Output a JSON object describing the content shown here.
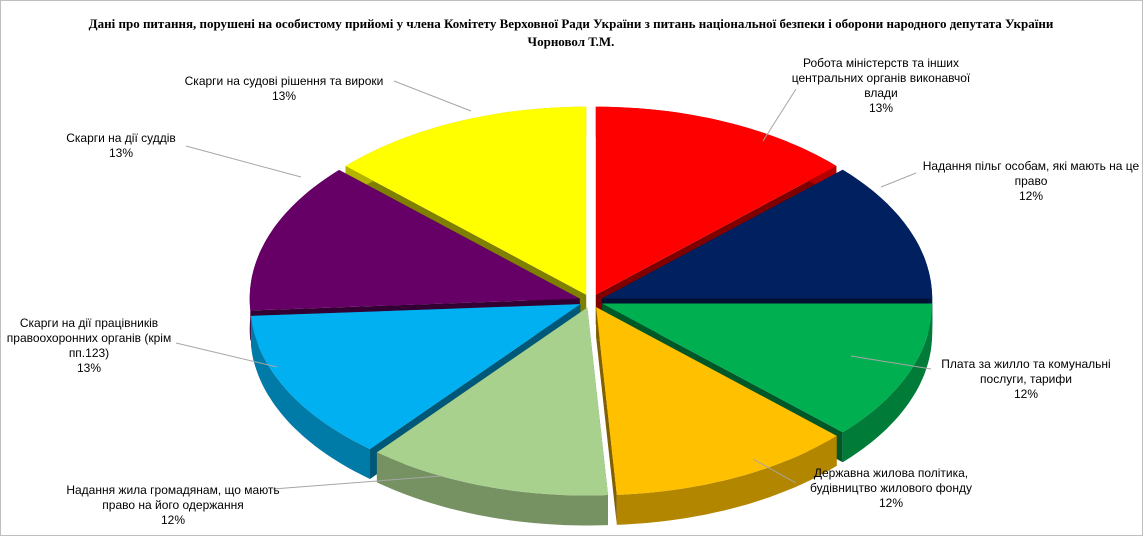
{
  "chart_data": {
    "type": "pie3d",
    "title": "Дані про питання, порушені на особистому прийомі у члена Комітету Верховної Ради України з питань національної безпеки і оборони народного депутата України Чорновол Т.М.",
    "categories": [
      "Робота міністерств та інших центральних органів виконавчої влади",
      "Надання пільг особам, які мають на це право",
      "Плата за жилло та комунальні послуги, тарифи",
      "Державна жилова політика, будівництво жилового фонду",
      "Надання жила громадянам, що мають право на його одержання",
      "Скарги на дії працівників правоохоронних органів (крім пп.123)",
      "Скарги на дії суддів",
      "Скарги на судові рішення та вироки"
    ],
    "values": [
      13,
      12,
      12,
      12,
      12,
      13,
      13,
      13
    ],
    "value_labels": [
      "13%",
      "12%",
      "12%",
      "12%",
      "12%",
      "13%",
      "13%",
      "13%"
    ],
    "colors": [
      "#ff0000",
      "#002060",
      "#00b050",
      "#ffc000",
      "#a9d18e",
      "#00b0f0",
      "#660066",
      "#ffff00"
    ]
  }
}
